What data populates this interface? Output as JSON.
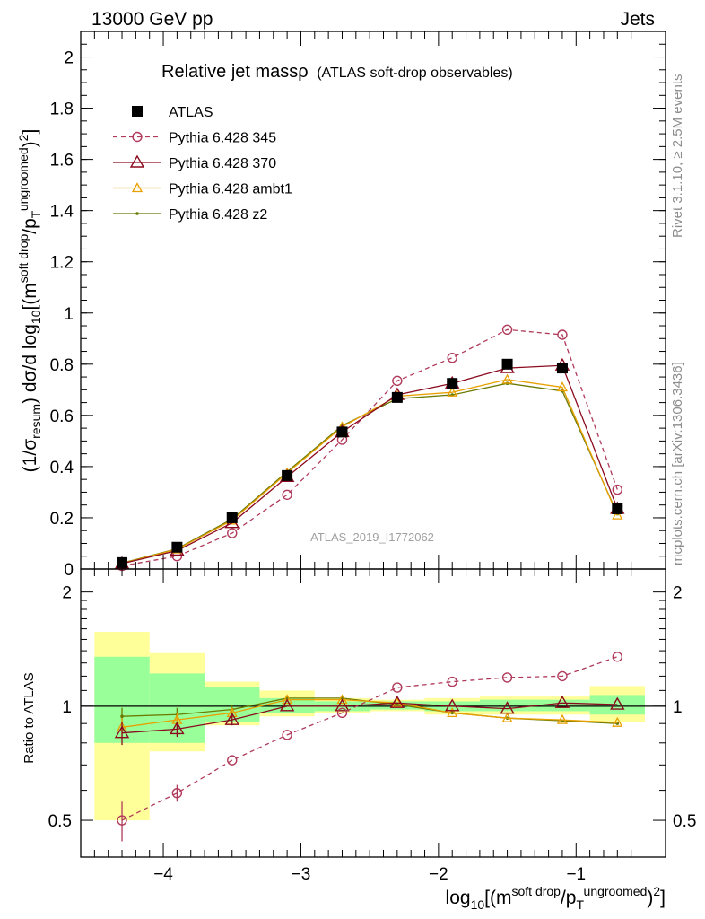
{
  "header": {
    "left": "13000 GeV pp",
    "right": "Jets"
  },
  "side_text": {
    "rivet": "Rivet 3.1.10, ≥ 2.5M events",
    "mcplots": "mcplots.cern.ch [arXiv:1306.3436]"
  },
  "chart_data": [
    {
      "type": "scatter",
      "title": "Relative jet massρ (ATLAS soft-drop observables)",
      "title_main": "Relative jet massρ",
      "title_sub": "(ATLAS soft-drop observables)",
      "watermark": "ATLAS_2019_I1772062",
      "ylabel": "(1/σresum) dσ/d log10[(msoft drop/pTungroomed)2]",
      "xlabel": "log10[(msoft drop/pTungroomed)2]",
      "xlim": [
        -4.6,
        -0.35
      ],
      "ylim": [
        0,
        2.1
      ],
      "xticks": [
        "−4",
        "−3",
        "−2",
        "−1"
      ],
      "yticks": [
        "0",
        "0.2",
        "0.4",
        "0.6",
        "0.8",
        "1",
        "1.2",
        "1.4",
        "1.6",
        "1.8",
        "2"
      ],
      "legend_position": "top-left",
      "x": [
        -4.3,
        -3.9,
        -3.5,
        -3.1,
        -2.7,
        -2.3,
        -1.9,
        -1.5,
        -1.1,
        -0.7
      ],
      "series": [
        {
          "name": "ATLAS",
          "color": "#000000",
          "marker": "square",
          "line": "none",
          "values": [
            0.025,
            0.085,
            0.2,
            0.365,
            0.535,
            0.67,
            0.725,
            0.8,
            0.785,
            0.235
          ]
        },
        {
          "name": "Pythia 6.428 345",
          "color": "#b03a5a",
          "marker": "circle",
          "line": "dashed",
          "values": [
            0.012,
            0.05,
            0.14,
            0.29,
            0.505,
            0.735,
            0.825,
            0.935,
            0.915,
            0.31
          ]
        },
        {
          "name": "Pythia 6.428 370",
          "color": "#8b0a1e",
          "marker": "triangle",
          "line": "solid",
          "values": [
            0.021,
            0.072,
            0.18,
            0.36,
            0.535,
            0.68,
            0.725,
            0.785,
            0.795,
            0.235
          ]
        },
        {
          "name": "Pythia 6.428 ambt1",
          "color": "#e8a000",
          "marker": "small-triangle",
          "line": "solid",
          "values": [
            0.022,
            0.077,
            0.19,
            0.375,
            0.555,
            0.675,
            0.69,
            0.74,
            0.71,
            0.21
          ]
        },
        {
          "name": "Pythia 6.428 z2",
          "color": "#6b7a00",
          "marker": "dot",
          "line": "solid",
          "values": [
            0.023,
            0.079,
            0.195,
            0.38,
            0.56,
            0.665,
            0.68,
            0.725,
            0.695,
            0.215
          ]
        }
      ]
    },
    {
      "type": "scatter",
      "ylabel": "Ratio to ATLAS",
      "xlim": [
        -4.6,
        -0.35
      ],
      "ylim": [
        0.4,
        2.3
      ],
      "log_y": true,
      "yticks": [
        "0.5",
        "1",
        "2"
      ],
      "x": [
        -4.3,
        -3.9,
        -3.5,
        -3.1,
        -2.7,
        -2.3,
        -1.9,
        -1.5,
        -1.1,
        -0.7
      ],
      "bin_edges": [
        -4.5,
        -4.1,
        -3.7,
        -3.3,
        -2.9,
        -2.5,
        -2.1,
        -1.7,
        -1.3,
        -0.9,
        -0.5
      ],
      "band_green": [
        [
          0.8,
          1.35
        ],
        [
          0.8,
          1.22
        ],
        [
          0.91,
          1.12
        ],
        [
          0.96,
          1.05
        ],
        [
          0.97,
          1.03
        ],
        [
          0.98,
          1.03
        ],
        [
          0.97,
          1.03
        ],
        [
          0.97,
          1.04
        ],
        [
          0.97,
          1.04
        ],
        [
          0.95,
          1.07
        ]
      ],
      "band_yellow": [
        [
          0.5,
          1.57
        ],
        [
          0.76,
          1.38
        ],
        [
          0.89,
          1.16
        ],
        [
          0.94,
          1.1
        ],
        [
          0.96,
          1.05
        ],
        [
          0.97,
          1.04
        ],
        [
          0.95,
          1.05
        ],
        [
          0.95,
          1.06
        ],
        [
          0.95,
          1.06
        ],
        [
          0.91,
          1.13
        ]
      ],
      "series": [
        {
          "name": "Pythia 6.428 345",
          "color": "#b03a5a",
          "marker": "circle",
          "line": "dashed",
          "values": [
            0.5,
            0.59,
            0.72,
            0.84,
            0.96,
            1.12,
            1.16,
            1.19,
            1.2,
            1.35
          ],
          "errors": [
            0.06,
            0.03,
            0,
            0,
            0,
            0,
            0,
            0,
            0,
            0
          ]
        },
        {
          "name": "Pythia 6.428 370",
          "color": "#8b0a1e",
          "marker": "triangle",
          "line": "solid",
          "values": [
            0.85,
            0.87,
            0.92,
            1.0,
            1.0,
            1.02,
            1.0,
            0.985,
            1.02,
            1.01
          ],
          "errors": [
            0.06,
            0.04,
            0.03,
            0,
            0,
            0,
            0,
            0,
            0,
            0
          ]
        },
        {
          "name": "Pythia 6.428 ambt1",
          "color": "#e8a000",
          "marker": "small-triangle",
          "line": "solid",
          "values": [
            0.88,
            0.92,
            0.96,
            1.04,
            1.04,
            1.02,
            0.96,
            0.93,
            0.92,
            0.905
          ],
          "errors": [
            0.05,
            0.04,
            0.03,
            0,
            0,
            0,
            0,
            0,
            0,
            0
          ]
        },
        {
          "name": "Pythia 6.428 z2",
          "color": "#6b7a00",
          "marker": "dot",
          "line": "solid",
          "values": [
            0.94,
            0.95,
            0.98,
            1.05,
            1.05,
            1.01,
            0.96,
            0.93,
            0.915,
            0.9
          ],
          "errors": [
            0.05,
            0.04,
            0.03,
            0,
            0,
            0,
            0,
            0,
            0,
            0
          ]
        }
      ]
    }
  ]
}
